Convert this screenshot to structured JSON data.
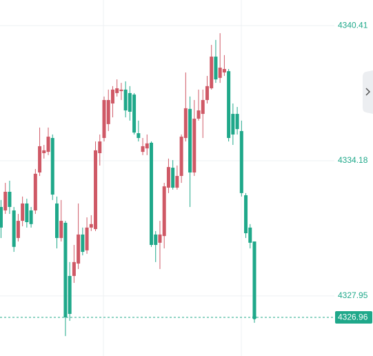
{
  "chart_data": {
    "type": "candlestick",
    "up_color": "#cf5966",
    "down_color": "#1fa88a",
    "ylim": [
      4325.18,
      4341.59
    ],
    "yticks": [
      4327.95,
      4334.18,
      4340.41
    ],
    "grid": true,
    "last_price": 4326.96,
    "open": [
      4332.05,
      4331.89,
      4332.75,
      4331.89,
      4330.62,
      4331.41,
      4332.21,
      4331.89,
      4331.89,
      4333.64,
      4334.53,
      4334.59,
      4335.23,
      4332.21,
      4330.62,
      4331.32,
      4328.87,
      4328.87,
      4329.44,
      4330.78,
      4330.05,
      4331.1,
      4331.03,
      4334.53,
      4335.23,
      4335.87,
      4336.82,
      4337.3,
      4337.39,
      4337.46,
      4337.3,
      4337.23,
      4335.45,
      4334.59,
      4334.75,
      4335.01,
      4330.78,
      4330.4,
      4330.71,
      4332.94,
      4333.86,
      4332.94,
      4333.48,
      4335.23,
      4336.57,
      4333.64,
      4336.12,
      4336.34,
      4336.98,
      4337.52,
      4338.98,
      4338.0,
      4338.25,
      4338.31,
      4336.34,
      4336.34,
      4335.55,
      4332.59,
      4331.1,
      4330.46
    ],
    "high": [
      4332.37,
      4333.16,
      4333.26,
      4332.05,
      4331.73,
      4332.53,
      4332.43,
      4332.05,
      4333.8,
      4335.71,
      4334.91,
      4335.71,
      4335.39,
      4332.53,
      4332.37,
      4331.41,
      4329.51,
      4330.3,
      4332.21,
      4331.1,
      4331.57,
      4331.67,
      4335.07,
      4335.39,
      4337.14,
      4337.46,
      4337.62,
      4337.93,
      4337.77,
      4337.84,
      4337.62,
      4337.3,
      4336.03,
      4335.23,
      4335.39,
      4335.07,
      4330.94,
      4331.41,
      4333.16,
      4334.28,
      4334.21,
      4333.96,
      4335.39,
      4338.25,
      4337.14,
      4336.98,
      4337.46,
      4337.46,
      4338.09,
      4339.52,
      4339.75,
      4340.06,
      4339.05,
      4338.41,
      4336.82,
      4336.66,
      4336.03,
      4332.69,
      4331.26,
      4330.46
    ],
    "low": [
      4330.62,
      4331.73,
      4331.73,
      4329.98,
      4330.46,
      4331.16,
      4331.1,
      4331.1,
      4331.73,
      4333.48,
      4334.28,
      4334.44,
      4332.37,
      4330.14,
      4330.46,
      4326.1,
      4326.8,
      4328.55,
      4329.19,
      4329.82,
      4329.89,
      4330.94,
      4330.94,
      4333.96,
      4335.07,
      4335.55,
      4336.18,
      4337.14,
      4336.98,
      4336.18,
      4336.03,
      4335.39,
      4335.07,
      4334.44,
      4334.44,
      4330.21,
      4329.51,
      4329.19,
      4330.14,
      4332.69,
      4332.85,
      4332.85,
      4333.16,
      4335.07,
      4332.05,
      4333.48,
      4336.03,
      4335.23,
      4336.82,
      4337.46,
      4337.77,
      4337.77,
      4338.09,
      4335.07,
      4334.91,
      4335.39,
      4332.53,
      4330.62,
      4330.14,
      4326.71
    ],
    "close": [
      4331.1,
      4332.75,
      4332.05,
      4330.21,
      4331.41,
      4332.21,
      4331.35,
      4331.26,
      4333.58,
      4334.85,
      4334.66,
      4335.29,
      4332.62,
      4330.62,
      4331.41,
      4326.96,
      4327.12,
      4329.51,
      4330.78,
      4329.98,
      4331.1,
      4331.26,
      4334.66,
      4335.07,
      4336.98,
      4336.98,
      4337.46,
      4337.52,
      4337.46,
      4336.5,
      4336.44,
      4335.48,
      4335.23,
      4334.85,
      4334.98,
      4330.3,
      4330.3,
      4330.78,
      4333.0,
      4333.89,
      4332.94,
      4333.48,
      4335.29,
      4336.6,
      4333.64,
      4336.12,
      4336.5,
      4336.98,
      4337.62,
      4338.98,
      4337.93,
      4338.47,
      4338.41,
      4335.23,
      4335.39,
      4335.64,
      4332.69,
      4330.84,
      4330.4,
      4326.96
    ]
  }
}
